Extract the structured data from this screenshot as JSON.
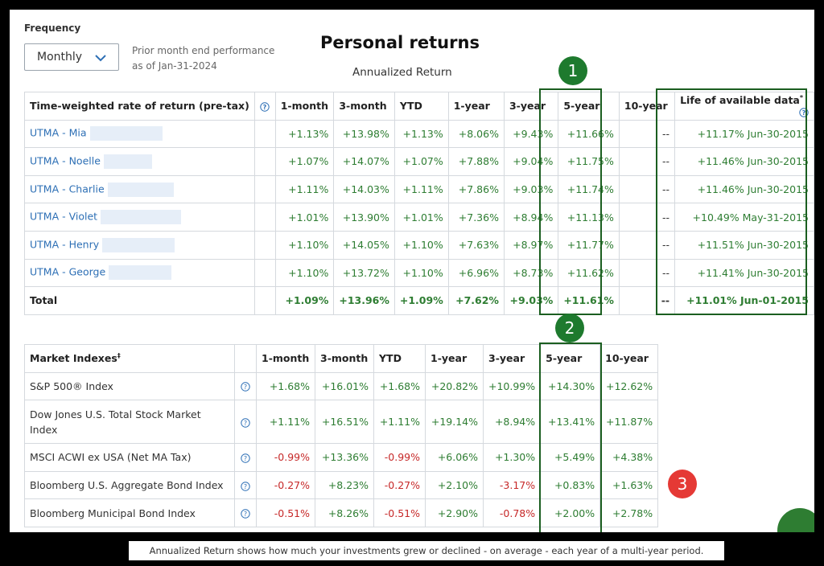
{
  "frequency": {
    "label": "Frequency",
    "value": "Monthly"
  },
  "prior": {
    "line1": "Prior month end performance",
    "line2": "as of Jan-31-2024"
  },
  "title": "Personal returns",
  "subtitle": "Annualized Return",
  "performance": {
    "header": {
      "name": "Time-weighted rate of return (pre-tax)",
      "cols": [
        "1-month",
        "3-month",
        "YTD",
        "1-year",
        "3-year",
        "5-year",
        "10-year"
      ],
      "life": "Life of available data",
      "life_mark": "*"
    },
    "rows": [
      {
        "name": "UTMA - Mia",
        "vals": [
          "+1.13%",
          "+13.98%",
          "+1.13%",
          "+8.06%",
          "+9.43%",
          "+11.66%",
          "--"
        ],
        "life": "+11.17% Jun-30-2015"
      },
      {
        "name": "UTMA - Noelle",
        "vals": [
          "+1.07%",
          "+14.07%",
          "+1.07%",
          "+7.88%",
          "+9.04%",
          "+11.75%",
          "--"
        ],
        "life": "+11.46% Jun-30-2015"
      },
      {
        "name": "UTMA - Charlie",
        "vals": [
          "+1.11%",
          "+14.03%",
          "+1.11%",
          "+7.86%",
          "+9.03%",
          "+11.74%",
          "--"
        ],
        "life": "+11.46% Jun-30-2015"
      },
      {
        "name": "UTMA - Violet",
        "vals": [
          "+1.01%",
          "+13.90%",
          "+1.01%",
          "+7.36%",
          "+8.94%",
          "+11.13%",
          "--"
        ],
        "life": "+10.49% May-31-2015"
      },
      {
        "name": "UTMA - Henry",
        "vals": [
          "+1.10%",
          "+14.05%",
          "+1.10%",
          "+7.63%",
          "+8.97%",
          "+11.77%",
          "--"
        ],
        "life": "+11.51% Jun-30-2015"
      },
      {
        "name": "UTMA - George",
        "vals": [
          "+1.10%",
          "+13.72%",
          "+1.10%",
          "+6.96%",
          "+8.73%",
          "+11.62%",
          "--"
        ],
        "life": "+11.41% Jun-30-2015"
      }
    ],
    "total": {
      "name": "Total",
      "vals": [
        "+1.09%",
        "+13.96%",
        "+1.09%",
        "+7.62%",
        "+9.03%",
        "+11.61%",
        "--"
      ],
      "life": "+11.01% Jun-01-2015"
    }
  },
  "indexes": {
    "header": {
      "name": "Market Indexes",
      "mark": "‡",
      "cols": [
        "1-month",
        "3-month",
        "YTD",
        "1-year",
        "3-year",
        "5-year",
        "10-year"
      ]
    },
    "rows": [
      {
        "name": "S&P 500® Index",
        "vals": [
          "+1.68%",
          "+16.01%",
          "+1.68%",
          "+20.82%",
          "+10.99%",
          "+14.30%",
          "+12.62%"
        ]
      },
      {
        "name": "Dow Jones U.S. Total Stock Market Index",
        "vals": [
          "+1.11%",
          "+16.51%",
          "+1.11%",
          "+19.14%",
          "+8.94%",
          "+13.41%",
          "+11.87%"
        ]
      },
      {
        "name": "MSCI ACWI ex USA (Net MA Tax)",
        "vals": [
          "-0.99%",
          "+13.36%",
          "-0.99%",
          "+6.06%",
          "+1.30%",
          "+5.49%",
          "+4.38%"
        ]
      },
      {
        "name": "Bloomberg U.S. Aggregate Bond Index",
        "vals": [
          "-0.27%",
          "+8.23%",
          "-0.27%",
          "+2.10%",
          "-3.17%",
          "+0.83%",
          "+1.63%"
        ]
      },
      {
        "name": "Bloomberg Municipal Bond Index",
        "vals": [
          "-0.51%",
          "+8.26%",
          "-0.51%",
          "+2.90%",
          "-0.78%",
          "+2.00%",
          "+2.78%"
        ]
      }
    ]
  },
  "badges": [
    "1",
    "2",
    "3"
  ],
  "caption": "Annualized Return shows how much your investments grew or declined - on average - each year of a multi-year period.",
  "colors": {
    "positive": "#2e7d32",
    "negative": "#c62828",
    "link": "#2d6fb5",
    "highlight": "#1b5e20",
    "badge_green": "#1e7a2e",
    "badge_red": "#e53935"
  },
  "icons": {
    "help": "question-circle-icon",
    "dropdown": "chevron-down-icon"
  }
}
